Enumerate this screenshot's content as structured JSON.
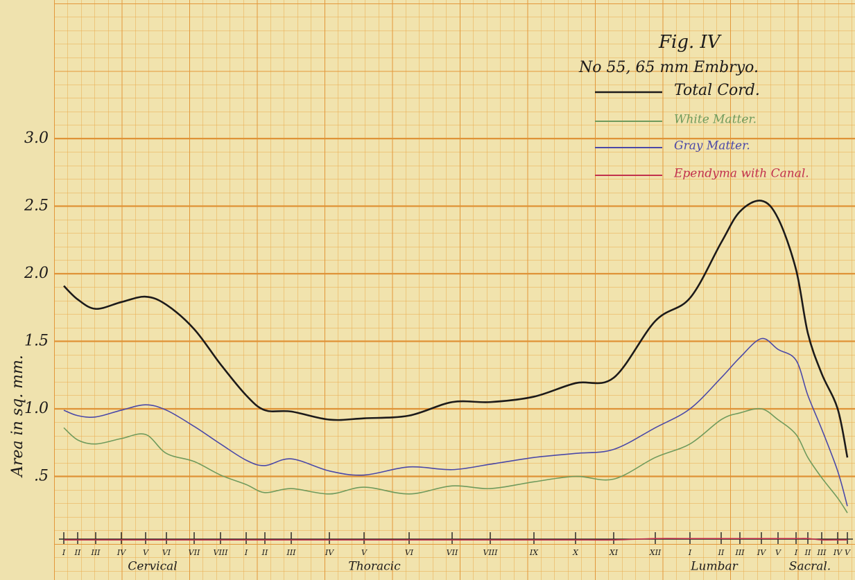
{
  "chart_data": {
    "type": "line",
    "title": "Fig. IV",
    "subtitle": "No 55, 65 mm Embryo.",
    "y_label": "Area in sq. mm.",
    "categories": [
      "I",
      "II",
      "III",
      "IV",
      "V",
      "VI",
      "VII",
      "VIII",
      "I",
      "II",
      "III",
      "IV",
      "V",
      "VI",
      "VII",
      "VIII",
      "IX",
      "X",
      "XI",
      "XII",
      "I",
      "II",
      "III",
      "IV",
      "V",
      "I",
      "II",
      "III",
      "IV",
      "V"
    ],
    "groups": [
      "Cervical",
      "Thoracic",
      "Lumbar",
      "Sacral."
    ],
    "ylim": [
      0,
      4
    ],
    "yticks": [
      {
        "value": 0.5,
        "label": ".5"
      },
      {
        "value": 1,
        "label": "1.0"
      },
      1.5,
      {
        "value": 2,
        "label": "2.0"
      },
      2.5,
      {
        "value": 3,
        "label": "3.0"
      }
    ],
    "grid": true,
    "series": [
      {
        "name": "Total Cord.",
        "color": "#1c1a1a",
        "values": [
          1.91,
          1.81,
          1.74,
          1.79,
          1.83,
          1.77,
          1.59,
          1.33,
          1.1,
          0.99,
          0.98,
          0.92,
          0.93,
          0.95,
          1.05,
          1.05,
          1.09,
          1.19,
          1.23,
          1.65,
          1.82,
          2.23,
          2.46,
          2.54,
          2.41,
          2.03,
          1.56,
          1.26,
          1.0,
          0.64
        ]
      },
      {
        "name": "White Matter.",
        "color": "#6f9a5c",
        "values": [
          0.86,
          0.77,
          0.74,
          0.78,
          0.81,
          0.67,
          0.61,
          0.51,
          0.44,
          0.38,
          0.41,
          0.37,
          0.42,
          0.37,
          0.43,
          0.41,
          0.46,
          0.5,
          0.48,
          0.64,
          0.74,
          0.92,
          0.97,
          1.0,
          0.92,
          0.81,
          0.64,
          0.49,
          0.34,
          0.23
        ]
      },
      {
        "name": "Gray Matter.",
        "color": "#4a48a8",
        "values": [
          0.99,
          0.95,
          0.94,
          0.99,
          1.03,
          0.99,
          0.87,
          0.74,
          0.62,
          0.58,
          0.63,
          0.54,
          0.51,
          0.57,
          0.55,
          0.59,
          0.64,
          0.67,
          0.7,
          0.86,
          1.0,
          1.23,
          1.38,
          1.52,
          1.44,
          1.36,
          1.1,
          0.85,
          0.54,
          0.28
        ]
      },
      {
        "name": "Ependyma with Canal.",
        "color": "#c2304c",
        "values": [
          0.03,
          0.03,
          0.03,
          0.03,
          0.03,
          0.03,
          0.03,
          0.03,
          0.03,
          0.03,
          0.03,
          0.03,
          0.03,
          0.03,
          0.03,
          0.03,
          0.03,
          0.03,
          0.03,
          0.04,
          0.04,
          0.04,
          0.04,
          0.04,
          0.04,
          0.04,
          0.04,
          0.03,
          0.03,
          0.03
        ]
      }
    ]
  }
}
